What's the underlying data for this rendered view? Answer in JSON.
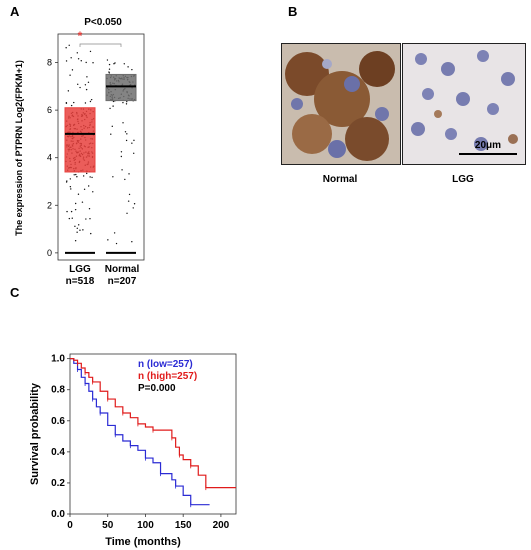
{
  "panels": {
    "A": {
      "label": "A"
    },
    "B": {
      "label": "B"
    },
    "C": {
      "label": "C"
    }
  },
  "boxplot": {
    "pvalue": "P<0.050",
    "significance_mark": "*",
    "ylabel": "The expression of PTPRN Log2(FPKM+1)",
    "ylim": [
      -0.3,
      9.2
    ],
    "yticks": [
      "0",
      "2",
      "4",
      "6",
      "8"
    ],
    "groups": [
      {
        "name": "LGG",
        "n": "n=518",
        "color": "#e8413d"
      },
      {
        "name": "Normal",
        "n": "n=207",
        "color": "#6e6e6e"
      }
    ]
  },
  "ihc": {
    "images": [
      {
        "caption": "Normal",
        "stain": "strong"
      },
      {
        "caption": "LGG",
        "stain": "weak"
      }
    ],
    "scale_bar": "20μm"
  },
  "survival": {
    "legend": [
      {
        "text": "n (low=257)",
        "color": "#2b2bd4"
      },
      {
        "text": "n (high=257)",
        "color": "#e01b1b"
      },
      {
        "text": "P=0.000",
        "color": "#000000"
      }
    ],
    "xlabel": "Time (months)",
    "ylabel": "Survival probability",
    "xticks": [
      "0",
      "50",
      "100",
      "150",
      "200"
    ],
    "yticks": [
      "0.0",
      "0.2",
      "0.4",
      "0.6",
      "0.8",
      "1.0"
    ]
  },
  "chart_data": [
    {
      "type": "box",
      "categories": [
        "LGG",
        "Normal"
      ],
      "series": [
        {
          "name": "LGG",
          "q1": 3.4,
          "median": 5.0,
          "q3": 6.1,
          "whisker_low": 0.0,
          "whisker_high": 8.8
        },
        {
          "name": "Normal",
          "q1": 6.4,
          "median": 7.0,
          "q3": 7.5,
          "whisker_low": 0.0,
          "whisker_high": 8.2
        }
      ],
      "ylabel": "The expression of PTPRN Log2(FPKM+1)",
      "ylim": [
        -0.3,
        9.2
      ],
      "annotation": "P<0.050"
    },
    {
      "type": "line",
      "title": "",
      "xlabel": "Time (months)",
      "ylabel": "Survival probability",
      "xlim": [
        0,
        220
      ],
      "ylim": [
        0,
        1.03
      ],
      "series": [
        {
          "name": "n (low=257)",
          "color": "#2b2bd4",
          "x": [
            0,
            5,
            10,
            15,
            20,
            25,
            30,
            35,
            40,
            50,
            60,
            70,
            80,
            90,
            100,
            110,
            120,
            135,
            140,
            150,
            160,
            185
          ],
          "y": [
            1.0,
            0.97,
            0.93,
            0.88,
            0.84,
            0.79,
            0.74,
            0.69,
            0.65,
            0.57,
            0.51,
            0.47,
            0.44,
            0.41,
            0.36,
            0.33,
            0.26,
            0.22,
            0.18,
            0.12,
            0.06,
            0.06
          ]
        },
        {
          "name": "n (high=257)",
          "color": "#e01b1b",
          "x": [
            0,
            5,
            10,
            15,
            20,
            25,
            30,
            40,
            50,
            60,
            70,
            80,
            90,
            100,
            110,
            120,
            135,
            140,
            145,
            150,
            160,
            170,
            180,
            220
          ],
          "y": [
            1.0,
            0.99,
            0.97,
            0.94,
            0.91,
            0.88,
            0.85,
            0.79,
            0.74,
            0.69,
            0.65,
            0.62,
            0.58,
            0.56,
            0.54,
            0.54,
            0.49,
            0.43,
            0.38,
            0.35,
            0.31,
            0.25,
            0.17,
            0.17
          ]
        }
      ],
      "annotation": "P=0.000"
    }
  ]
}
